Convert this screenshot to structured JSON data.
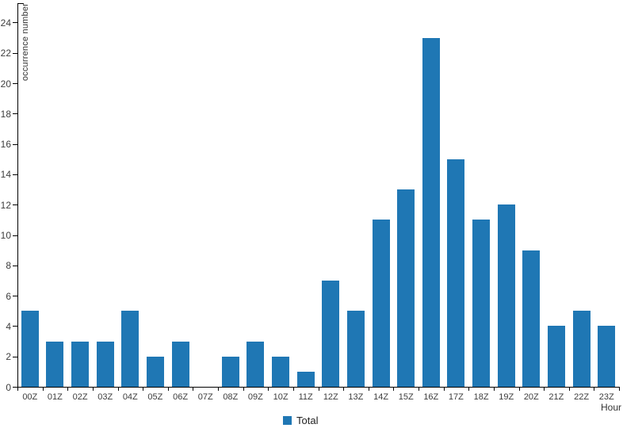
{
  "chart_data": {
    "type": "bar",
    "title": "",
    "categories": [
      "00Z",
      "01Z",
      "02Z",
      "03Z",
      "04Z",
      "05Z",
      "06Z",
      "07Z",
      "08Z",
      "09Z",
      "10Z",
      "11Z",
      "12Z",
      "13Z",
      "14Z",
      "15Z",
      "16Z",
      "17Z",
      "18Z",
      "19Z",
      "20Z",
      "21Z",
      "22Z",
      "23Z"
    ],
    "values": [
      5,
      3,
      3,
      3,
      5,
      2,
      3,
      0,
      2,
      3,
      2,
      1,
      7,
      5,
      11,
      13,
      23,
      15,
      11,
      12,
      9,
      4,
      5,
      4
    ],
    "series": [
      {
        "name": "Total",
        "values": [
          5,
          3,
          3,
          3,
          5,
          2,
          3,
          0,
          2,
          3,
          2,
          1,
          7,
          5,
          11,
          13,
          23,
          15,
          11,
          12,
          9,
          4,
          5,
          4
        ]
      }
    ],
    "xlabel": "Hour",
    "ylabel": "occurrence number",
    "ylim": [
      0,
      25
    ],
    "y_ticks": [
      0,
      2,
      4,
      6,
      8,
      10,
      12,
      14,
      16,
      18,
      20,
      22,
      24
    ],
    "grid": false,
    "legend_position": "bottom-center"
  },
  "legend": {
    "items": [
      {
        "label": "Total",
        "color": "#1f77b4"
      }
    ]
  },
  "colors": {
    "bar": "#1f77b4",
    "axis": "#000000",
    "tick_text": "#3d3d3d",
    "background": "#ffffff"
  }
}
